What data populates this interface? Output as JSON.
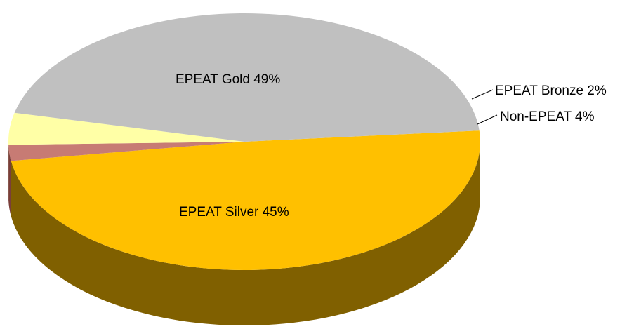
{
  "chart_data": {
    "type": "pie",
    "style": "3d",
    "slices": [
      {
        "label": "EPEAT Gold",
        "value": 49,
        "label_text": "EPEAT Gold 49%",
        "color": "#FFC000",
        "side_color": "#806000"
      },
      {
        "label": "EPEAT Bronze",
        "value": 2,
        "label_text": "EPEAT Bronze 2%",
        "color": "#C77B74",
        "side_color": "#7A3E3A"
      },
      {
        "label": "Non-EPEAT",
        "value": 4,
        "label_text": "Non-EPEAT  4%",
        "color": "#FFFFA6",
        "side_color": "#9A9A60"
      },
      {
        "label": "EPEAT Silver",
        "value": 45,
        "label_text": "EPEAT Silver 45%",
        "color": "#C0C0C0",
        "side_color": "#5F5F5F"
      }
    ],
    "legend": "none"
  }
}
